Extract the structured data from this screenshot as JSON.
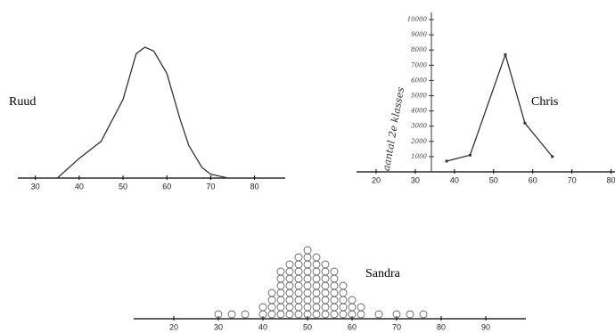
{
  "chart_data": [
    {
      "type": "line",
      "label": "Ruud",
      "x": [
        35,
        40,
        45,
        50,
        53,
        55,
        57,
        60,
        63,
        65,
        68,
        70,
        74
      ],
      "values": [
        0,
        15,
        28,
        60,
        95,
        100,
        97,
        80,
        45,
        25,
        8,
        3,
        0
      ],
      "xlim": [
        26,
        87
      ],
      "xticks": [
        30,
        40,
        50,
        60,
        70,
        80
      ],
      "ylim": [
        0,
        100
      ],
      "color": "#333333"
    },
    {
      "type": "line",
      "label": "Chris",
      "ylabel": "aantal 2e klasses",
      "x": [
        38,
        44,
        53,
        58,
        65
      ],
      "values": [
        700,
        1100,
        7700,
        3200,
        1000
      ],
      "xlim": [
        15,
        81
      ],
      "xticks": [
        20,
        30,
        40,
        50,
        60,
        70,
        80
      ],
      "ylim": [
        0,
        10000
      ],
      "yticks": [
        1000,
        2000,
        3000,
        4000,
        5000,
        6000,
        7000,
        8000,
        9000,
        10000
      ],
      "color": "#333333"
    },
    {
      "type": "dot",
      "label": "Sandra",
      "x": [
        30,
        33,
        36,
        40,
        42,
        44,
        46,
        48,
        50,
        52,
        54,
        56,
        58,
        60,
        62,
        66,
        70,
        73,
        76
      ],
      "values": [
        1,
        1,
        1,
        2,
        4,
        7,
        8,
        9,
        10,
        9,
        8,
        7,
        5,
        3,
        2,
        1,
        1,
        1,
        1
      ],
      "xlim": [
        11,
        99
      ],
      "xticks": [
        20,
        30,
        40,
        50,
        60,
        70,
        80,
        90
      ],
      "color": "#666666"
    }
  ]
}
